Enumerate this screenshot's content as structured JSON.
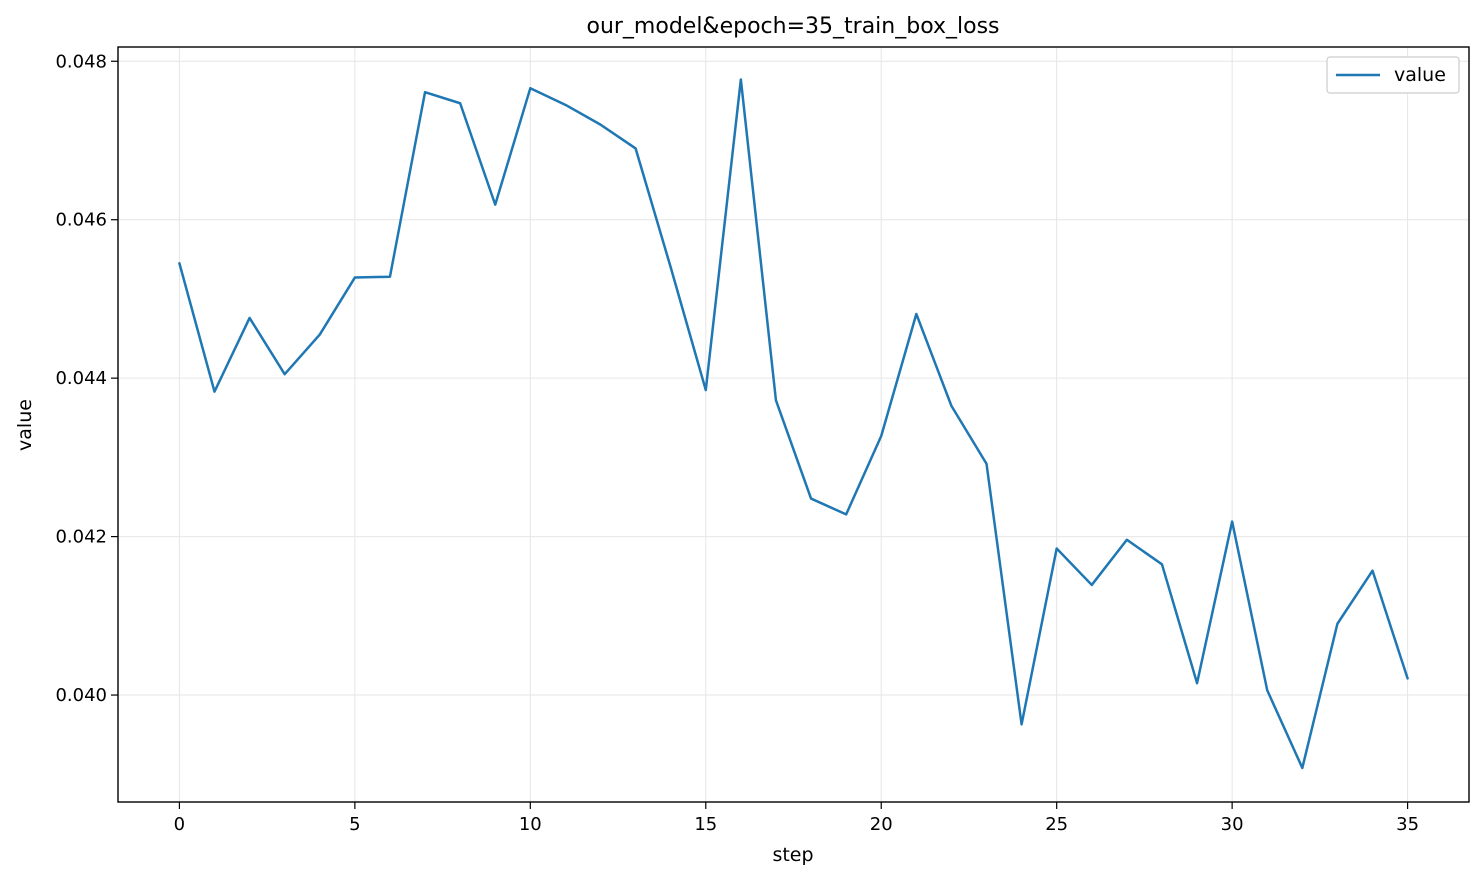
{
  "chart_data": {
    "type": "line",
    "title": "our_model&epoch=35_train_box_loss",
    "xlabel": "step",
    "ylabel": "value",
    "xlim": [
      -1.75,
      36.75
    ],
    "ylim": [
      0.03865,
      0.04818
    ],
    "xticks": [
      0,
      5,
      10,
      15,
      20,
      25,
      30,
      35
    ],
    "yticks": [
      0.04,
      0.042,
      0.044,
      0.046,
      0.048
    ],
    "ytick_labels": [
      "0.040",
      "0.042",
      "0.044",
      "0.046",
      "0.048"
    ],
    "grid": true,
    "legend": {
      "position": "top-right"
    },
    "series": [
      {
        "name": "value",
        "color": "#1f77b4",
        "x": [
          0,
          1,
          2,
          3,
          4,
          5,
          6,
          7,
          8,
          9,
          10,
          11,
          12,
          13,
          14,
          15,
          16,
          17,
          18,
          19,
          20,
          21,
          22,
          23,
          24,
          25,
          26,
          27,
          28,
          29,
          30,
          31,
          32,
          33,
          34,
          35
        ],
        "y": [
          0.04545,
          0.04383,
          0.04476,
          0.04405,
          0.04455,
          0.04527,
          0.04528,
          0.04761,
          0.04747,
          0.04619,
          0.04766,
          0.04745,
          0.0472,
          0.0469,
          0.0454,
          0.04385,
          0.04777,
          0.04372,
          0.04248,
          0.04228,
          0.04327,
          0.04481,
          0.04365,
          0.04292,
          0.03963,
          0.04185,
          0.04139,
          0.04196,
          0.04165,
          0.04015,
          0.04219,
          0.04006,
          0.03908,
          0.0409,
          0.04157,
          0.04021
        ]
      }
    ]
  }
}
